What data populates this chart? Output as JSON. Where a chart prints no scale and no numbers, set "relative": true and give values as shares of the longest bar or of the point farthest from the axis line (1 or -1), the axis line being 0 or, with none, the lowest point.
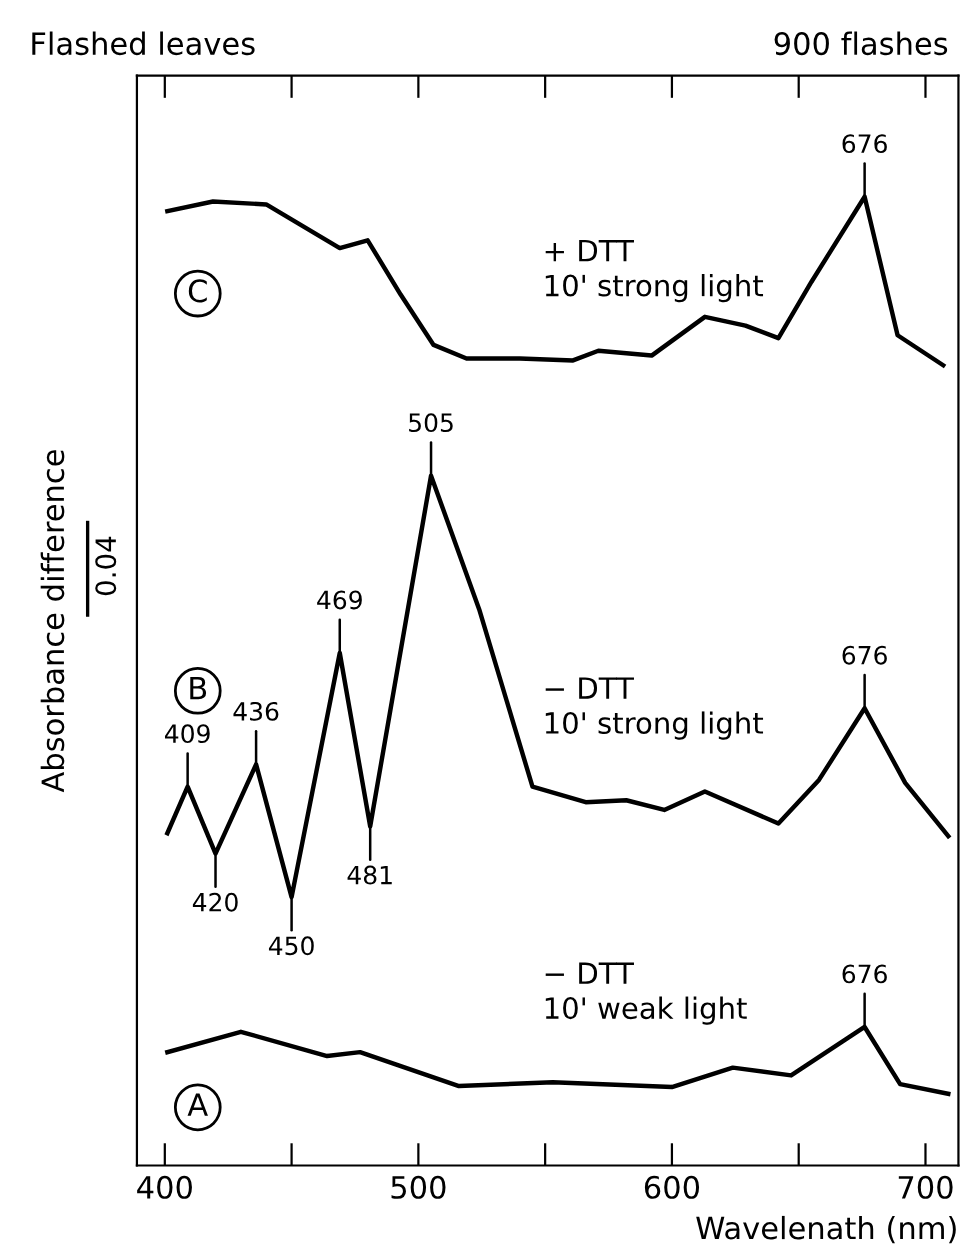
{
  "chart_data": {
    "type": "line",
    "title": "Flashed leaves",
    "subtitle": "900 flashes",
    "xlabel": "Wavelenath (nm)",
    "ylabel": "Absorbance difference",
    "relative": true,
    "xlim": [
      389,
      713
    ],
    "xticks": [
      400,
      {
        "value": 450,
        "label": null
      },
      500,
      {
        "value": 550,
        "label": null
      },
      600,
      {
        "value": 650,
        "label": null
      },
      700
    ],
    "grid": false,
    "legend": false,
    "marker": "none",
    "line_style": "solid",
    "series": [
      {
        "name": "+ DTT\n10' strong light",
        "color": "#000000",
        "x": [
          401,
          419,
          440,
          469,
          480,
          493,
          506,
          519,
          540,
          561,
          571,
          592,
          613,
          629,
          642,
          655,
          676,
          689,
          707
        ],
        "values": [
          0.985,
          0.995,
          0.992,
          0.947,
          0.955,
          0.899,
          0.847,
          0.833,
          0.833,
          0.831,
          0.841,
          0.836,
          0.876,
          0.867,
          0.854,
          0.912,
          1.0,
          0.857,
          0.826
        ]
      },
      {
        "name": "− DTT\n10' strong light",
        "color": "#000000",
        "x": [
          401,
          409,
          420,
          436,
          450,
          469,
          481,
          505,
          524,
          545,
          566,
          582,
          597,
          613,
          642,
          658,
          676,
          692,
          709
        ],
        "values": [
          0.343,
          0.391,
          0.322,
          0.414,
          0.277,
          0.529,
          0.35,
          0.712,
          0.574,
          0.391,
          0.375,
          0.377,
          0.367,
          0.386,
          0.353,
          0.398,
          0.472,
          0.395,
          0.34
        ]
      },
      {
        "name": "− DTT\n10' weak light",
        "color": "#000000",
        "x": [
          401,
          430,
          464,
          477,
          516,
          553,
          600,
          624,
          647,
          676,
          690,
          709
        ],
        "values": [
          0.117,
          0.138,
          0.113,
          0.117,
          0.082,
          0.086,
          0.081,
          0.101,
          0.093,
          0.143,
          0.084,
          0.074
        ]
      }
    ],
    "annotations": [
      {
        "text": "676",
        "x": 676,
        "y": 1.0
      },
      {
        "text": "409",
        "x": 409,
        "y": 0.391
      },
      {
        "text": "420",
        "x": 420,
        "y": 0.322
      },
      {
        "text": "436",
        "x": 436,
        "y": 0.414
      },
      {
        "text": "450",
        "x": 450,
        "y": 0.277
      },
      {
        "text": "469",
        "x": 469,
        "y": 0.529
      },
      {
        "text": "481",
        "x": 481,
        "y": 0.35
      },
      {
        "text": "505",
        "x": 505,
        "y": 0.712
      },
      {
        "text": "676",
        "x": 676,
        "y": 0.472
      },
      {
        "text": "676",
        "x": 676,
        "y": 0.143
      },
      {
        "text": "C",
        "x": 413,
        "y": 0.9
      },
      {
        "text": "B",
        "x": 413,
        "y": 0.49
      },
      {
        "text": "A",
        "x": 413,
        "y": 0.06
      },
      "0.04"
    ]
  }
}
